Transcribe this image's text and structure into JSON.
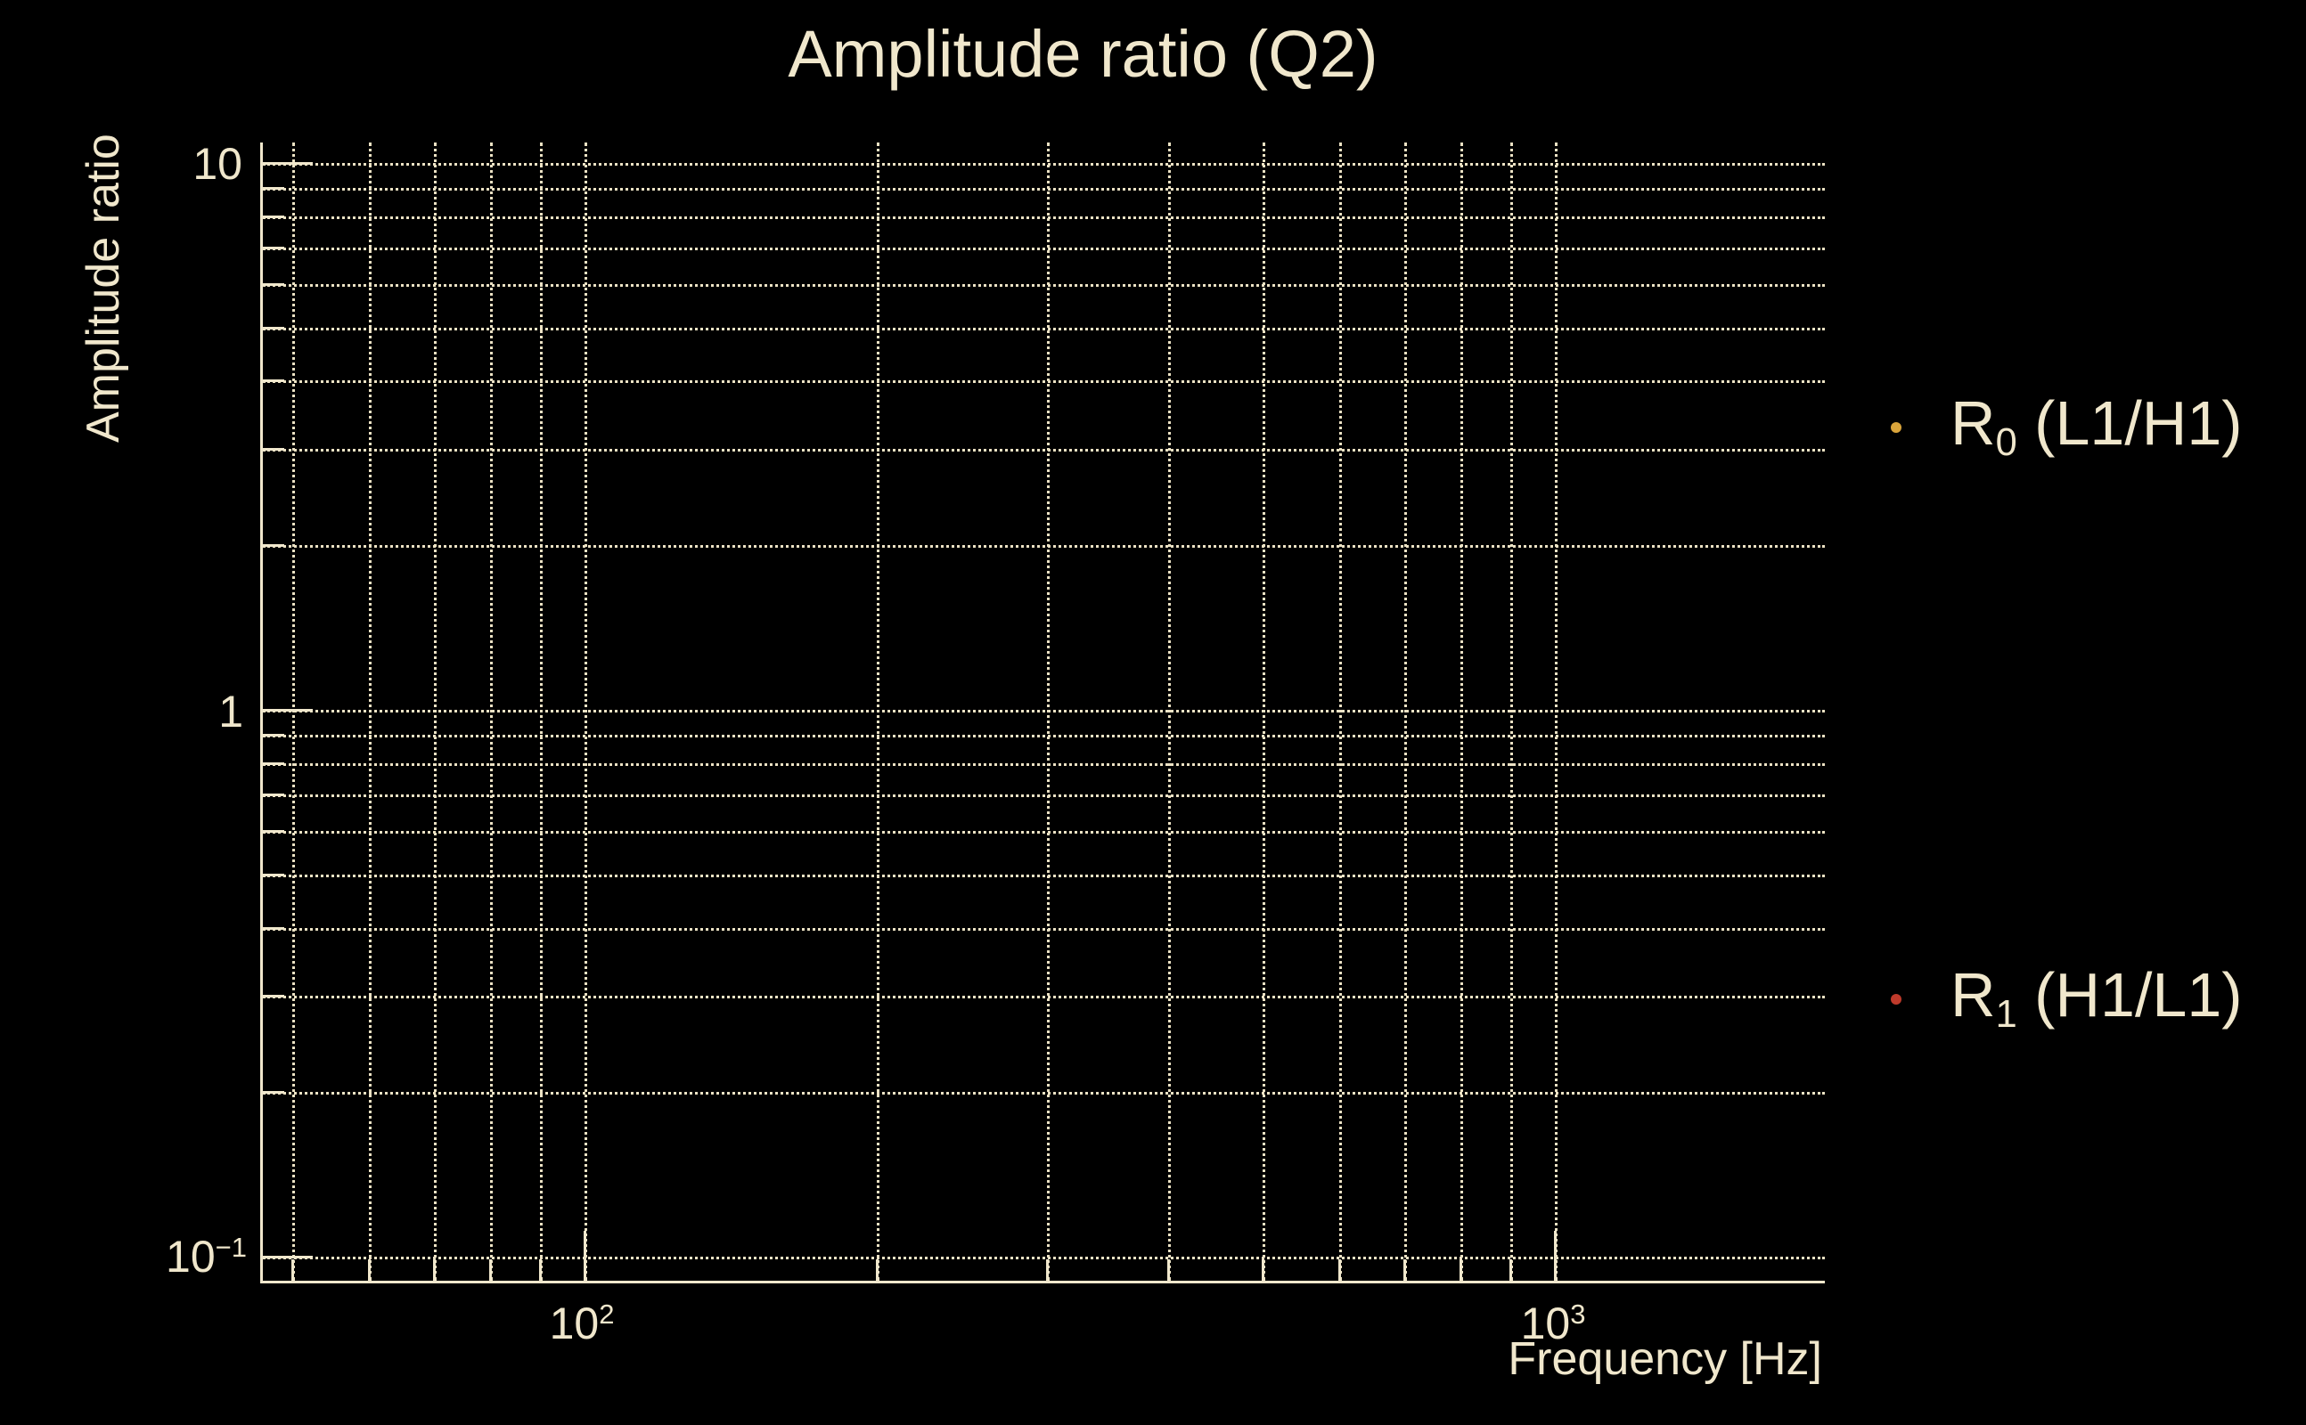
{
  "title": "Amplitude ratio (Q2)",
  "axes": {
    "xlabel": "Frequency [Hz]",
    "ylabel": "Amplitude ratio",
    "x_tick_labels": [
      {
        "base": "10",
        "exp": "2"
      },
      {
        "base": "10",
        "exp": "3"
      }
    ],
    "y_tick_labels": [
      {
        "base": "10",
        "exp": ""
      },
      {
        "base": "1",
        "exp": ""
      },
      {
        "base": "10",
        "exp": "−1"
      }
    ]
  },
  "legend": {
    "items": [
      {
        "base": "R",
        "sub": "0",
        "rest": " (L1/H1)",
        "marker_color": "#d9a43b"
      },
      {
        "base": "R",
        "sub": "1",
        "rest": " (H1/L1)",
        "marker_color": "#bf3a2b"
      }
    ]
  },
  "colors": {
    "background": "#000000",
    "foreground": "#f0e7cc",
    "gridline": "#ece2c4",
    "series_R0_marker": "#d9a43b",
    "series_R1_marker": "#bf3a2b"
  },
  "chart_data": {
    "type": "scatter",
    "title": "Amplitude ratio (Q2)",
    "xlabel": "Frequency [Hz]",
    "ylabel": "Amplitude ratio",
    "x_scale": "log",
    "y_scale": "log",
    "xlim": [
      46.6,
      1900
    ],
    "ylim": [
      0.0905,
      10.9
    ],
    "x_gridlines": [
      50,
      60,
      70,
      80,
      90,
      100,
      200,
      300,
      400,
      500,
      600,
      700,
      800,
      900,
      1000
    ],
    "x_major_ticks": [
      100,
      1000
    ],
    "y_gridlines": [
      10,
      9,
      8,
      7,
      6,
      5,
      4,
      3,
      2,
      1,
      0.9,
      0.8,
      0.7,
      0.6,
      0.5,
      0.4,
      0.3,
      0.2,
      0.1
    ],
    "y_major_ticks": [
      10,
      1,
      0.1
    ],
    "grid_style": "dotted",
    "legend_position": "right-outside",
    "series": [
      {
        "name": "R0 (L1/H1)",
        "marker": "dot",
        "marker_color": "#d9a43b",
        "points": []
      },
      {
        "name": "R1 (H1/L1)",
        "marker": "dot",
        "marker_color": "#bf3a2b",
        "points": []
      }
    ]
  }
}
